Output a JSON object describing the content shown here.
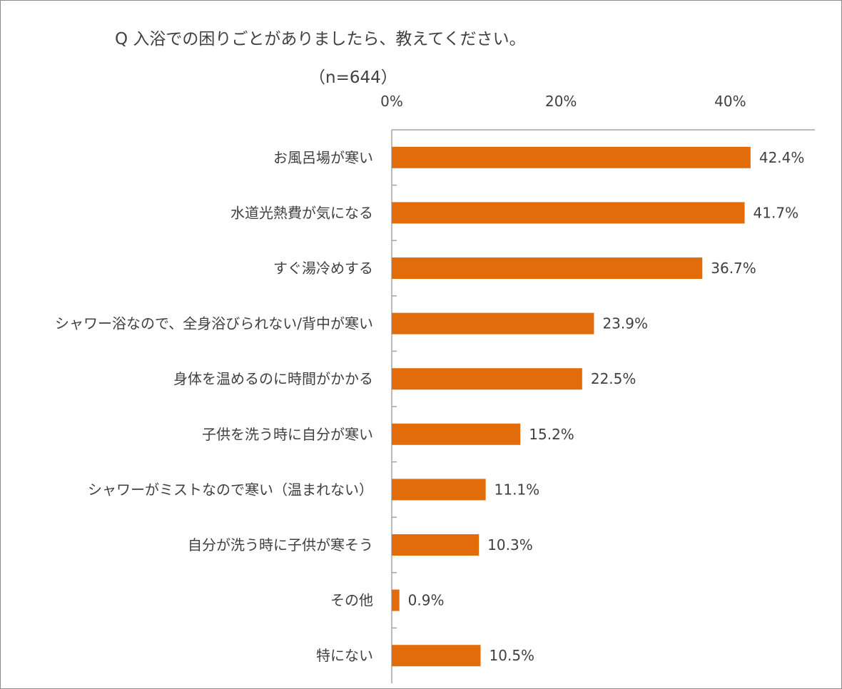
{
  "chart_data": {
    "type": "bar",
    "orientation": "horizontal",
    "title": "Q 入浴での困りごとがありましたら、教えてください。",
    "subtitle": "（n=644）",
    "categories": [
      "お風呂場が寒い",
      "水道光熱費が気になる",
      "すぐ湯冷めする",
      "シャワー浴なので、全身浴びられない/背中が寒い",
      "身体を温めるのに時間がかかる",
      "子供を洗う時に自分が寒い",
      "シャワーがミストなので寒い（温まれない）",
      "自分が洗う時に子供が寒そう",
      "その他",
      "特にない"
    ],
    "values": [
      42.4,
      41.7,
      36.7,
      23.9,
      22.5,
      15.2,
      11.1,
      10.3,
      0.9,
      10.5
    ],
    "value_labels": [
      "42.4%",
      "41.7%",
      "36.7%",
      "23.9%",
      "22.5%",
      "15.2%",
      "11.1%",
      "10.3%",
      "0.9%",
      "10.5%"
    ],
    "xlim": [
      0,
      50
    ],
    "xticks": [
      0,
      20,
      40
    ],
    "xtick_labels": [
      "0%",
      "20%",
      "40%"
    ],
    "axis_position": "top",
    "grid": false,
    "bar_color": "#E36C0A"
  }
}
